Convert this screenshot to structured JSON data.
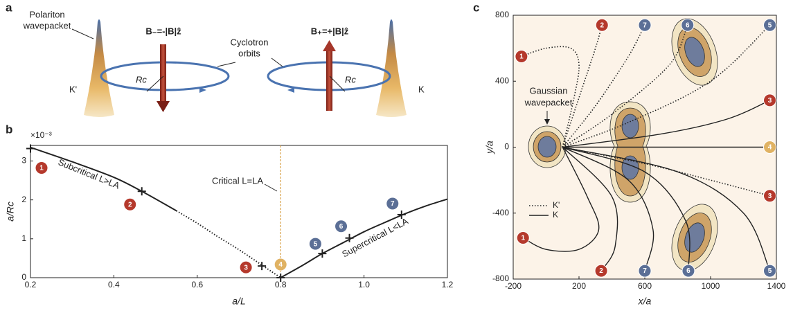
{
  "panel_labels": [
    "a",
    "b",
    "c"
  ],
  "panel_a": {
    "wavepacket_label": [
      "Polariton",
      "wavepacket"
    ],
    "field_minus": "B₋=-|B|ẑ",
    "field_plus": "B₊=+|B|ẑ",
    "orbit_label": [
      "Cyclotron",
      "orbits"
    ],
    "valley_left": "K'",
    "valley_right": "K",
    "radius_left": "Rc",
    "radius_right": "Rc"
  },
  "chart_data": [
    {
      "type": "line",
      "xlabel": "a/L",
      "ylabel": "a/Rc",
      "exponent": "×10⁻³",
      "xlim": [
        0.2,
        1.2
      ],
      "ylim": [
        0,
        3.4
      ],
      "xticks": [
        0.2,
        0.4,
        0.6,
        0.8,
        {
          "value": 1,
          "label": "1.0"
        },
        1.2
      ],
      "yticks": [
        0,
        1,
        2,
        3
      ],
      "series": [
        {
          "style": "solid",
          "color": "#222",
          "x": [
            0.2,
            0.3,
            0.4,
            0.467,
            0.55
          ],
          "values": [
            3.35,
            2.98,
            2.58,
            2.22,
            1.72
          ]
        },
        {
          "style": "dotted",
          "color": "#222",
          "x": [
            0.55,
            0.6,
            0.65,
            0.7,
            0.75,
            0.8
          ],
          "values": [
            1.72,
            1.4,
            1.05,
            0.72,
            0.36,
            0
          ]
        },
        {
          "style": "solid",
          "color": "#222",
          "x": [
            0.8,
            0.85,
            0.9,
            0.95,
            1,
            1.05,
            1.1,
            1.15,
            1.2
          ],
          "values": [
            0,
            0.3,
            0.62,
            0.9,
            1.18,
            1.42,
            1.65,
            1.85,
            2.02
          ]
        }
      ],
      "points": {
        "x": [
          0.2,
          0.467,
          0.755,
          0.8,
          0.9,
          0.965,
          1.09
        ],
        "values": [
          3.32,
          2.22,
          0.3,
          0,
          0.62,
          1.02,
          1.62
        ],
        "labels": [
          "1",
          "2",
          "3",
          "4",
          "5",
          "6",
          "7"
        ],
        "colors": [
          "#b5392c",
          "#b5392c",
          "#b5392c",
          "#e0b263",
          "#5b6f96",
          "#5b6f96",
          "#5b6f96"
        ]
      },
      "critical_x": 0.8,
      "critical_color": "#d9a24a",
      "annotations": [
        "Subcritical L>LA",
        "Critical L=LA",
        "Supercritical L<LA"
      ]
    },
    {
      "type": "trajectory",
      "xlabel": "x/a",
      "ylabel": "y/a",
      "xlim": [
        -200,
        1400
      ],
      "ylim": [
        -800,
        800
      ],
      "xticks": [
        -200,
        200,
        600,
        1000,
        1400
      ],
      "yticks": [
        -800,
        -400,
        0,
        400,
        800
      ],
      "legend": [
        {
          "label": "K'",
          "style": "dotted"
        },
        {
          "label": "K",
          "style": "solid"
        }
      ],
      "annotation": [
        "Gaussian",
        "wavepacket"
      ],
      "series": [
        {
          "style": "dotted",
          "label": "1",
          "color": "#b5392c",
          "x": [
            100,
            170,
            200,
            150,
            0,
            -150
          ],
          "values": [
            0,
            300,
            500,
            600,
            600,
            550
          ]
        },
        {
          "style": "dotted",
          "label": "2",
          "color": "#b5392c",
          "x": [
            100,
            200,
            300,
            340
          ],
          "values": [
            0,
            300,
            600,
            740
          ]
        },
        {
          "style": "dotted",
          "label": "7",
          "color": "#5b6f96",
          "x": [
            100,
            300,
            500,
            600
          ],
          "values": [
            0,
            250,
            550,
            740
          ]
        },
        {
          "style": "dotted",
          "label": "6",
          "color": "#5b6f96",
          "x": [
            100,
            400,
            750,
            860
          ],
          "values": [
            0,
            200,
            500,
            740
          ]
        },
        {
          "style": "dotted",
          "label": "5",
          "color": "#5b6f96",
          "x": [
            100,
            500,
            1000,
            1360
          ],
          "values": [
            0,
            150,
            400,
            740
          ]
        },
        {
          "style": "solid",
          "label": "3",
          "color": "#b5392c",
          "x": [
            100,
            700,
            1100,
            1360
          ],
          "values": [
            0,
            80,
            170,
            284
          ]
        },
        {
          "style": "solid",
          "label": "4",
          "color": "#e0b263",
          "x": [
            100,
            700,
            1360
          ],
          "values": [
            0,
            0,
            0
          ]
        },
        {
          "style": "dotted",
          "label": "3",
          "color": "#b5392c",
          "x": [
            100,
            600,
            1000,
            1360
          ],
          "values": [
            0,
            -100,
            -200,
            -295
          ]
        },
        {
          "style": "solid",
          "label": "1",
          "color": "#b5392c",
          "x": [
            100,
            250,
            320,
            200,
            0,
            -140
          ],
          "values": [
            0,
            -300,
            -500,
            -620,
            -620,
            -550
          ]
        },
        {
          "style": "solid",
          "label": "2",
          "color": "#b5392c",
          "x": [
            100,
            400,
            420,
            335
          ],
          "values": [
            0,
            -300,
            -600,
            -750
          ]
        },
        {
          "style": "solid",
          "label": "7",
          "color": "#5b6f96",
          "x": [
            100,
            500,
            650,
            600
          ],
          "values": [
            0,
            -200,
            -500,
            -750
          ]
        },
        {
          "style": "solid",
          "label": "6",
          "color": "#5b6f96",
          "x": [
            100,
            600,
            850,
            865
          ],
          "values": [
            0,
            -150,
            -450,
            -750
          ]
        },
        {
          "style": "solid",
          "label": "5",
          "color": "#5b6f96",
          "x": [
            100,
            800,
            1200,
            1360
          ],
          "values": [
            0,
            -150,
            -400,
            -750
          ]
        }
      ]
    }
  ]
}
